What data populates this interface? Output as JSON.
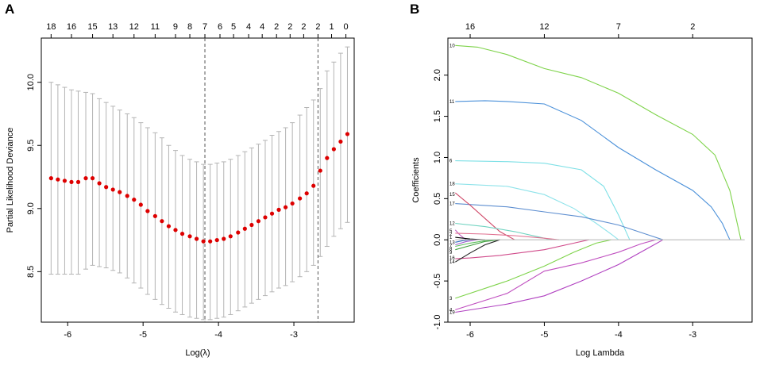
{
  "panels": {
    "a_label": "A",
    "b_label": "B"
  },
  "chart_data": [
    {
      "type": "scatter",
      "panel": "A",
      "xlabel": "Log(λ)",
      "ylabel": "Partial Likelihood Deviance",
      "xlim": [
        -6.35,
        -2.2
      ],
      "ylim": [
        8.1,
        10.35
      ],
      "xticks": [
        "-6",
        "-5",
        "-4",
        "-3"
      ],
      "xtick_values": [
        -6,
        -5,
        -4,
        -3
      ],
      "yticks": [
        "8.5",
        "9.0",
        "9.5",
        "10.0"
      ],
      "ytick_values": [
        8.5,
        9.0,
        9.5,
        10.0
      ],
      "top_axis_labels": [
        "18",
        "16",
        "15",
        "13",
        "12",
        "11",
        "9",
        "8",
        "7",
        "6",
        "5",
        "4",
        "4",
        "2",
        "2",
        "2",
        "2",
        "1",
        "0"
      ],
      "top_axis_x": [
        -6.22,
        -5.95,
        -5.67,
        -5.4,
        -5.12,
        -4.84,
        -4.57,
        -4.38,
        -4.18,
        -3.98,
        -3.8,
        -3.6,
        -3.42,
        -3.23,
        -3.05,
        -2.87,
        -2.68,
        -2.5,
        -2.31
      ],
      "vlines": [
        -4.18,
        -2.68
      ],
      "points": {
        "x": [
          -6.22,
          -6.13,
          -6.04,
          -5.95,
          -5.86,
          -5.76,
          -5.67,
          -5.58,
          -5.49,
          -5.4,
          -5.31,
          -5.21,
          -5.12,
          -5.03,
          -4.94,
          -4.84,
          -4.75,
          -4.66,
          -4.57,
          -4.48,
          -4.38,
          -4.29,
          -4.2,
          -4.11,
          -4.02,
          -3.93,
          -3.84,
          -3.74,
          -3.65,
          -3.56,
          -3.47,
          -3.38,
          -3.29,
          -3.2,
          -3.11,
          -3.02,
          -2.92,
          -2.83,
          -2.74,
          -2.65,
          -2.56,
          -2.47,
          -2.38,
          -2.29
        ],
        "y": [
          9.24,
          9.23,
          9.22,
          9.21,
          9.21,
          9.24,
          9.24,
          9.2,
          9.17,
          9.15,
          9.13,
          9.1,
          9.07,
          9.03,
          8.98,
          8.94,
          8.9,
          8.86,
          8.83,
          8.8,
          8.78,
          8.76,
          8.74,
          8.74,
          8.75,
          8.76,
          8.78,
          8.81,
          8.84,
          8.87,
          8.9,
          8.93,
          8.96,
          8.99,
          9.01,
          9.04,
          9.08,
          9.12,
          9.18,
          9.3,
          9.4,
          9.47,
          9.53,
          9.59
        ],
        "lower": [
          8.48,
          8.48,
          8.48,
          8.48,
          8.48,
          8.52,
          8.55,
          8.54,
          8.53,
          8.51,
          8.49,
          8.45,
          8.41,
          8.37,
          8.32,
          8.28,
          8.24,
          8.21,
          8.18,
          8.16,
          8.14,
          8.13,
          8.12,
          8.12,
          8.13,
          8.14,
          8.16,
          8.19,
          8.22,
          8.25,
          8.28,
          8.31,
          8.34,
          8.37,
          8.39,
          8.42,
          8.46,
          8.5,
          8.55,
          8.62,
          8.7,
          8.78,
          8.84,
          8.89
        ],
        "upper": [
          10.0,
          9.98,
          9.96,
          9.94,
          9.93,
          9.92,
          9.91,
          9.87,
          9.84,
          9.81,
          9.78,
          9.75,
          9.72,
          9.68,
          9.64,
          9.6,
          9.56,
          9.5,
          9.46,
          9.42,
          9.39,
          9.37,
          9.35,
          9.35,
          9.36,
          9.37,
          9.39,
          9.42,
          9.45,
          9.48,
          9.51,
          9.54,
          9.58,
          9.61,
          9.64,
          9.68,
          9.74,
          9.8,
          9.86,
          9.95,
          10.09,
          10.16,
          10.23,
          10.28
        ]
      },
      "colors": {
        "point": "#dd0000",
        "bar": "#b4b4b4",
        "vline": "#555555"
      }
    },
    {
      "type": "line",
      "panel": "B",
      "xlabel": "Log Lambda",
      "ylabel": "Coefficients",
      "xlim": [
        -6.3,
        -2.2
      ],
      "ylim": [
        -1.0,
        2.45
      ],
      "xticks": [
        "-6",
        "-5",
        "-4",
        "-3"
      ],
      "xtick_values": [
        -6,
        -5,
        -4,
        -3
      ],
      "yticks": [
        "-1.0",
        "-0.5",
        "0.0",
        "0.5",
        "1.0",
        "1.5",
        "2.0"
      ],
      "ytick_values": [
        -1.0,
        -0.5,
        0.0,
        0.5,
        1.0,
        1.5,
        2.0
      ],
      "top_axis_labels": [
        "16",
        "12",
        "7",
        "2"
      ],
      "top_axis_x": [
        -6.0,
        -5.0,
        -4.0,
        -3.0
      ],
      "series": [
        {
          "name": "10",
          "color": "#7ed34a",
          "x": [
            -6.2,
            -5.9,
            -5.5,
            -5.0,
            -4.5,
            -4.0,
            -3.5,
            -3.0,
            -2.7,
            -2.5,
            -2.35
          ],
          "y": [
            2.36,
            2.34,
            2.25,
            2.08,
            1.97,
            1.78,
            1.52,
            1.28,
            1.03,
            0.6,
            0.0
          ]
        },
        {
          "name": "11",
          "color": "#4a90d9",
          "x": [
            -6.2,
            -5.8,
            -5.5,
            -5.0,
            -4.5,
            -4.0,
            -3.5,
            -3.0,
            -2.75,
            -2.6,
            -2.5
          ],
          "y": [
            1.68,
            1.69,
            1.68,
            1.65,
            1.45,
            1.12,
            0.85,
            0.6,
            0.4,
            0.2,
            0.0
          ]
        },
        {
          "name": "6",
          "color": "#7ee0e6",
          "x": [
            -6.2,
            -5.5,
            -5.0,
            -4.5,
            -4.2,
            -4.0,
            -3.85
          ],
          "y": [
            0.96,
            0.95,
            0.93,
            0.85,
            0.65,
            0.3,
            0.0
          ]
        },
        {
          "name": "18",
          "color": "#8fe3ea",
          "x": [
            -6.2,
            -5.5,
            -5.0,
            -4.6,
            -4.3,
            -4.1,
            -4.0
          ],
          "y": [
            0.68,
            0.65,
            0.55,
            0.38,
            0.2,
            0.07,
            0.0
          ]
        },
        {
          "name": "17",
          "color": "#5d8ed0",
          "x": [
            -6.2,
            -5.5,
            -5.0,
            -4.5,
            -4.0,
            -3.6,
            -3.4
          ],
          "y": [
            0.44,
            0.4,
            0.34,
            0.28,
            0.18,
            0.06,
            0.0
          ]
        },
        {
          "name": "15",
          "color": "#d04a6a",
          "x": [
            -6.2,
            -6.0,
            -5.8,
            -5.6,
            -5.4
          ],
          "y": [
            0.57,
            0.42,
            0.26,
            0.1,
            0.0
          ]
        },
        {
          "name": "12",
          "color": "#6fd3c0",
          "x": [
            -6.2,
            -5.8,
            -5.4,
            -5.0,
            -4.9
          ],
          "y": [
            0.2,
            0.16,
            0.1,
            0.02,
            0.0
          ]
        },
        {
          "name": "5",
          "color": "#c05fc0",
          "x": [
            -6.2,
            -6.15,
            -6.1,
            -6.05
          ],
          "y": [
            0.12,
            0.07,
            0.03,
            0.0
          ]
        },
        {
          "name": "2",
          "color": "#e07090",
          "x": [
            -6.2,
            -5.8,
            -5.4,
            -5.0,
            -4.8
          ],
          "y": [
            0.08,
            0.07,
            0.05,
            0.02,
            0.0
          ]
        },
        {
          "name": "1",
          "color": "#000000",
          "x": [
            -6.2,
            -6.0,
            -5.8
          ],
          "y": [
            0.03,
            0.01,
            0.0
          ]
        },
        {
          "name": "13",
          "color": "#3070c0",
          "x": [
            -6.2,
            -6.1,
            -6.0
          ],
          "y": [
            -0.03,
            -0.01,
            0.0
          ]
        },
        {
          "name": "7",
          "color": "#5fc05f",
          "x": [
            -6.2,
            -6.0,
            -5.8,
            -5.6
          ],
          "y": [
            -0.08,
            -0.04,
            -0.01,
            0.0
          ]
        },
        {
          "name": "8",
          "color": "#40a040",
          "x": [
            -6.2,
            -6.0,
            -5.8,
            -5.6
          ],
          "y": [
            -0.12,
            -0.07,
            -0.02,
            0.0
          ]
        },
        {
          "name": "9",
          "color": "#a060d0",
          "x": [
            -6.2,
            -6.05,
            -5.9
          ],
          "y": [
            -0.06,
            -0.02,
            0.0
          ]
        },
        {
          "name": "16",
          "color": "#d04a8a",
          "x": [
            -6.2,
            -6.0,
            -5.6,
            -5.0,
            -4.6,
            -4.4
          ],
          "y": [
            -0.23,
            -0.22,
            -0.19,
            -0.12,
            -0.04,
            0.0
          ]
        },
        {
          "name": "14",
          "color": "#222222",
          "x": [
            -6.2,
            -6.0,
            -5.8,
            -5.6
          ],
          "y": [
            -0.27,
            -0.16,
            -0.06,
            0.0
          ]
        },
        {
          "name": "3",
          "color": "#7ed34a",
          "x": [
            -6.2,
            -5.5,
            -5.0,
            -4.6,
            -4.3,
            -4.1
          ],
          "y": [
            -0.71,
            -0.5,
            -0.32,
            -0.15,
            -0.04,
            0.0
          ]
        },
        {
          "name": "4",
          "color": "#c050c0",
          "x": [
            -6.2,
            -5.5,
            -5.0,
            -4.5,
            -4.0,
            -3.7,
            -3.5
          ],
          "y": [
            -0.85,
            -0.65,
            -0.38,
            -0.28,
            -0.15,
            -0.05,
            0.0
          ]
        },
        {
          "name": "19",
          "color": "#b040c0",
          "x": [
            -6.2,
            -5.5,
            -5.0,
            -4.5,
            -4.0,
            -3.6,
            -3.4
          ],
          "y": [
            -0.88,
            -0.78,
            -0.68,
            -0.5,
            -0.3,
            -0.1,
            0.0
          ]
        },
        {
          "name": "zero",
          "color": "#bbbbbb",
          "x": [
            -6.2,
            -2.3
          ],
          "y": [
            0.0,
            0.0
          ]
        }
      ],
      "margin_labels": [
        "10",
        "11",
        "6",
        "18",
        "15",
        "17",
        "12",
        "5",
        "2",
        "1",
        "13",
        "7",
        "8",
        "9",
        "16",
        "14",
        "3",
        "4",
        "19"
      ],
      "margin_label_y": [
        2.36,
        1.68,
        0.96,
        0.68,
        0.55,
        0.44,
        0.2,
        0.11,
        0.07,
        0.03,
        -0.03,
        -0.07,
        -0.11,
        -0.15,
        -0.22,
        -0.27,
        -0.71,
        -0.85,
        -0.88
      ]
    }
  ]
}
